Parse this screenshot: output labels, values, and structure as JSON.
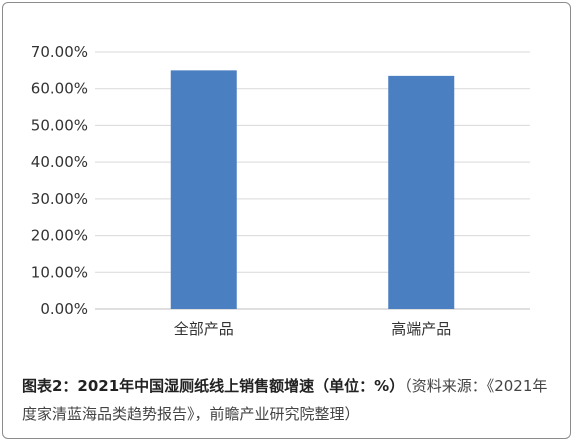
{
  "chart_data": {
    "type": "bar",
    "categories": [
      "全部产品",
      "高端产品"
    ],
    "values": [
      65.0,
      63.5
    ],
    "ylim": [
      0,
      70
    ],
    "yticks": [
      0,
      10,
      20,
      30,
      40,
      50,
      60,
      70
    ],
    "ytick_labels": [
      "0.00%",
      "10.00%",
      "20.00%",
      "30.00%",
      "40.00%",
      "50.00%",
      "60.00%",
      "70.00%"
    ],
    "bar_color": "#4a7fc1",
    "grid": true
  },
  "caption": {
    "title": "图表2：2021年中国湿厕纸线上销售额增速（单位：%）",
    "source": "（资料来源：《2021年度家清蓝海品类趋势报告》，前瞻产业研究院整理）"
  }
}
